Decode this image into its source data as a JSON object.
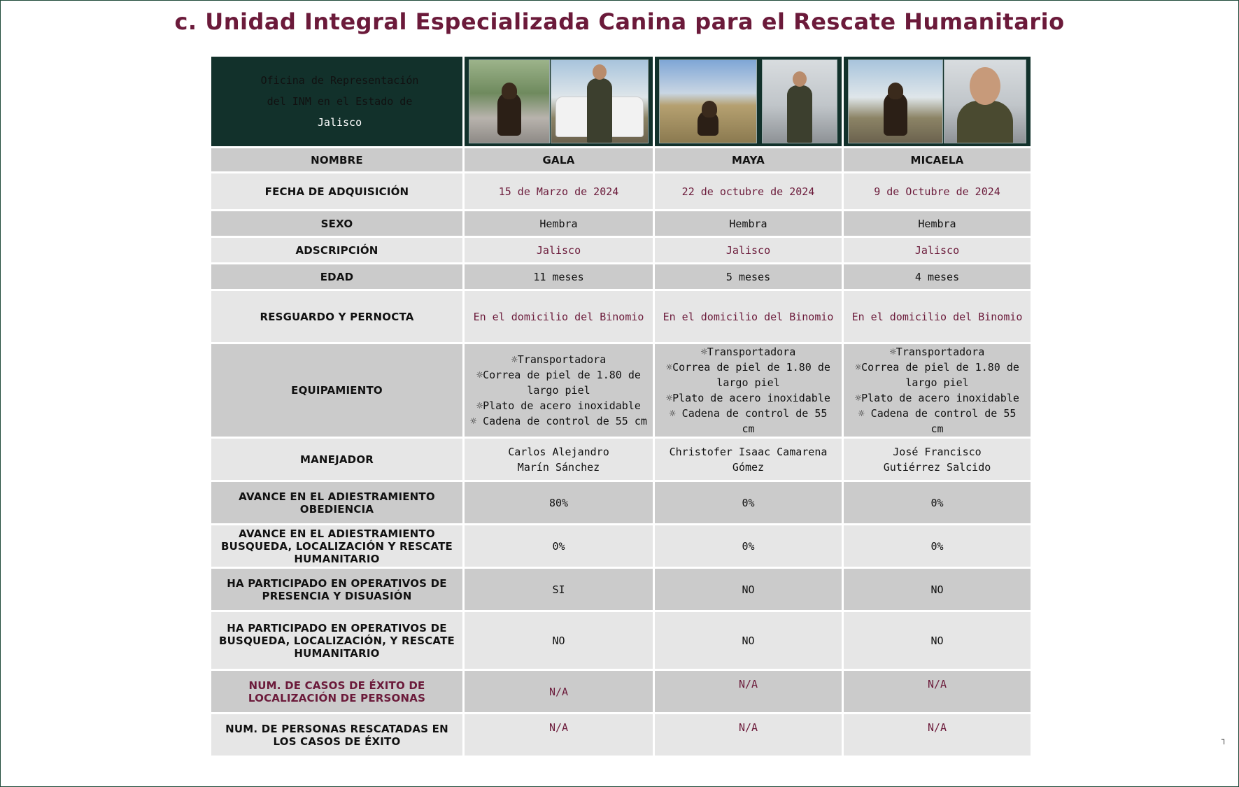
{
  "title": "c. Unidad Integral Especializada Canina para el Rescate Humanitario",
  "office": {
    "line1": "Oficina de Representación",
    "line2": "del INM en el Estado de",
    "state": "Jalisco"
  },
  "rows": {
    "nombre": {
      "label": "NOMBRE",
      "values": [
        "GALA",
        "MAYA",
        "MICAELA"
      ]
    },
    "fecha": {
      "label": "FECHA DE ADQUISICIÓN",
      "values": [
        "15 de Marzo de 2024",
        "22 de octubre de 2024",
        "9 de Octubre de 2024"
      ]
    },
    "sexo": {
      "label": "SEXO",
      "values": [
        "Hembra",
        "Hembra",
        "Hembra"
      ]
    },
    "adscripcion": {
      "label": "ADSCRIPCIÓN",
      "values": [
        "Jalisco",
        "Jalisco",
        "Jalisco"
      ]
    },
    "edad": {
      "label": "EDAD",
      "values": [
        "11 meses",
        "5 meses",
        "4 meses"
      ]
    },
    "resguardo": {
      "label": "RESGUARDO Y PERNOCTA",
      "values": [
        "En el domicilio del Binomio",
        "En el domicilio del Binomio",
        "En el domicilio del Binomio"
      ]
    },
    "equipamiento": {
      "label": "EQUIPAMIENTO",
      "items": [
        "☼Transportadora",
        "☼Correa de piel de 1.80 de largo piel",
        "☼Plato de acero inoxidable",
        "☼ Cadena de control de 55 cm"
      ]
    },
    "manejador": {
      "label": "MANEJADOR",
      "values": [
        [
          "Carlos Alejandro",
          "Marín Sánchez"
        ],
        [
          "Christofer Isaac Camarena",
          "Gómez"
        ],
        [
          "José Francisco",
          "Gutiérrez Salcido"
        ]
      ]
    },
    "obediencia": {
      "label": "AVANCE EN EL ADIESTRAMIENTO OBEDIENCIA",
      "values": [
        "80%",
        "0%",
        "0%"
      ]
    },
    "busqueda": {
      "label": "AVANCE EN EL ADIESTRAMIENTO BUSQUEDA, LOCALIZACIÓN Y RESCATE HUMANITARIO",
      "values": [
        "0%",
        "0%",
        "0%"
      ]
    },
    "presencia": {
      "label": "HA PARTICIPADO EN OPERATIVOS DE PRESENCIA Y DISUASIÓN",
      "values": [
        "SI",
        "NO",
        "NO"
      ]
    },
    "operativos": {
      "label": "HA PARTICIPADO EN OPERATIVOS DE BUSQUEDA, LOCALIZACIÓN, Y RESCATE HUMANITARIO",
      "values": [
        "NO",
        "NO",
        "NO"
      ]
    },
    "casos": {
      "label": "NUM. DE CASOS DE ÉXITO DE LOCALIZACIÓN DE PERSONAS",
      "values": [
        "N/A",
        "N/A",
        "N/A"
      ]
    },
    "rescatadas": {
      "label": "NUM. DE PERSONAS RESCATADAS EN LOS CASOS DE ÉXITO",
      "values": [
        "N/A",
        "N/A",
        "N/A"
      ]
    }
  },
  "corner_mark": "┐",
  "colors": {
    "title": "#6b1a3a",
    "header_bg": "#12312b",
    "office_text": "#c9a86a",
    "row_dark": "#cbcbcb",
    "row_light": "#e6e6e6"
  }
}
